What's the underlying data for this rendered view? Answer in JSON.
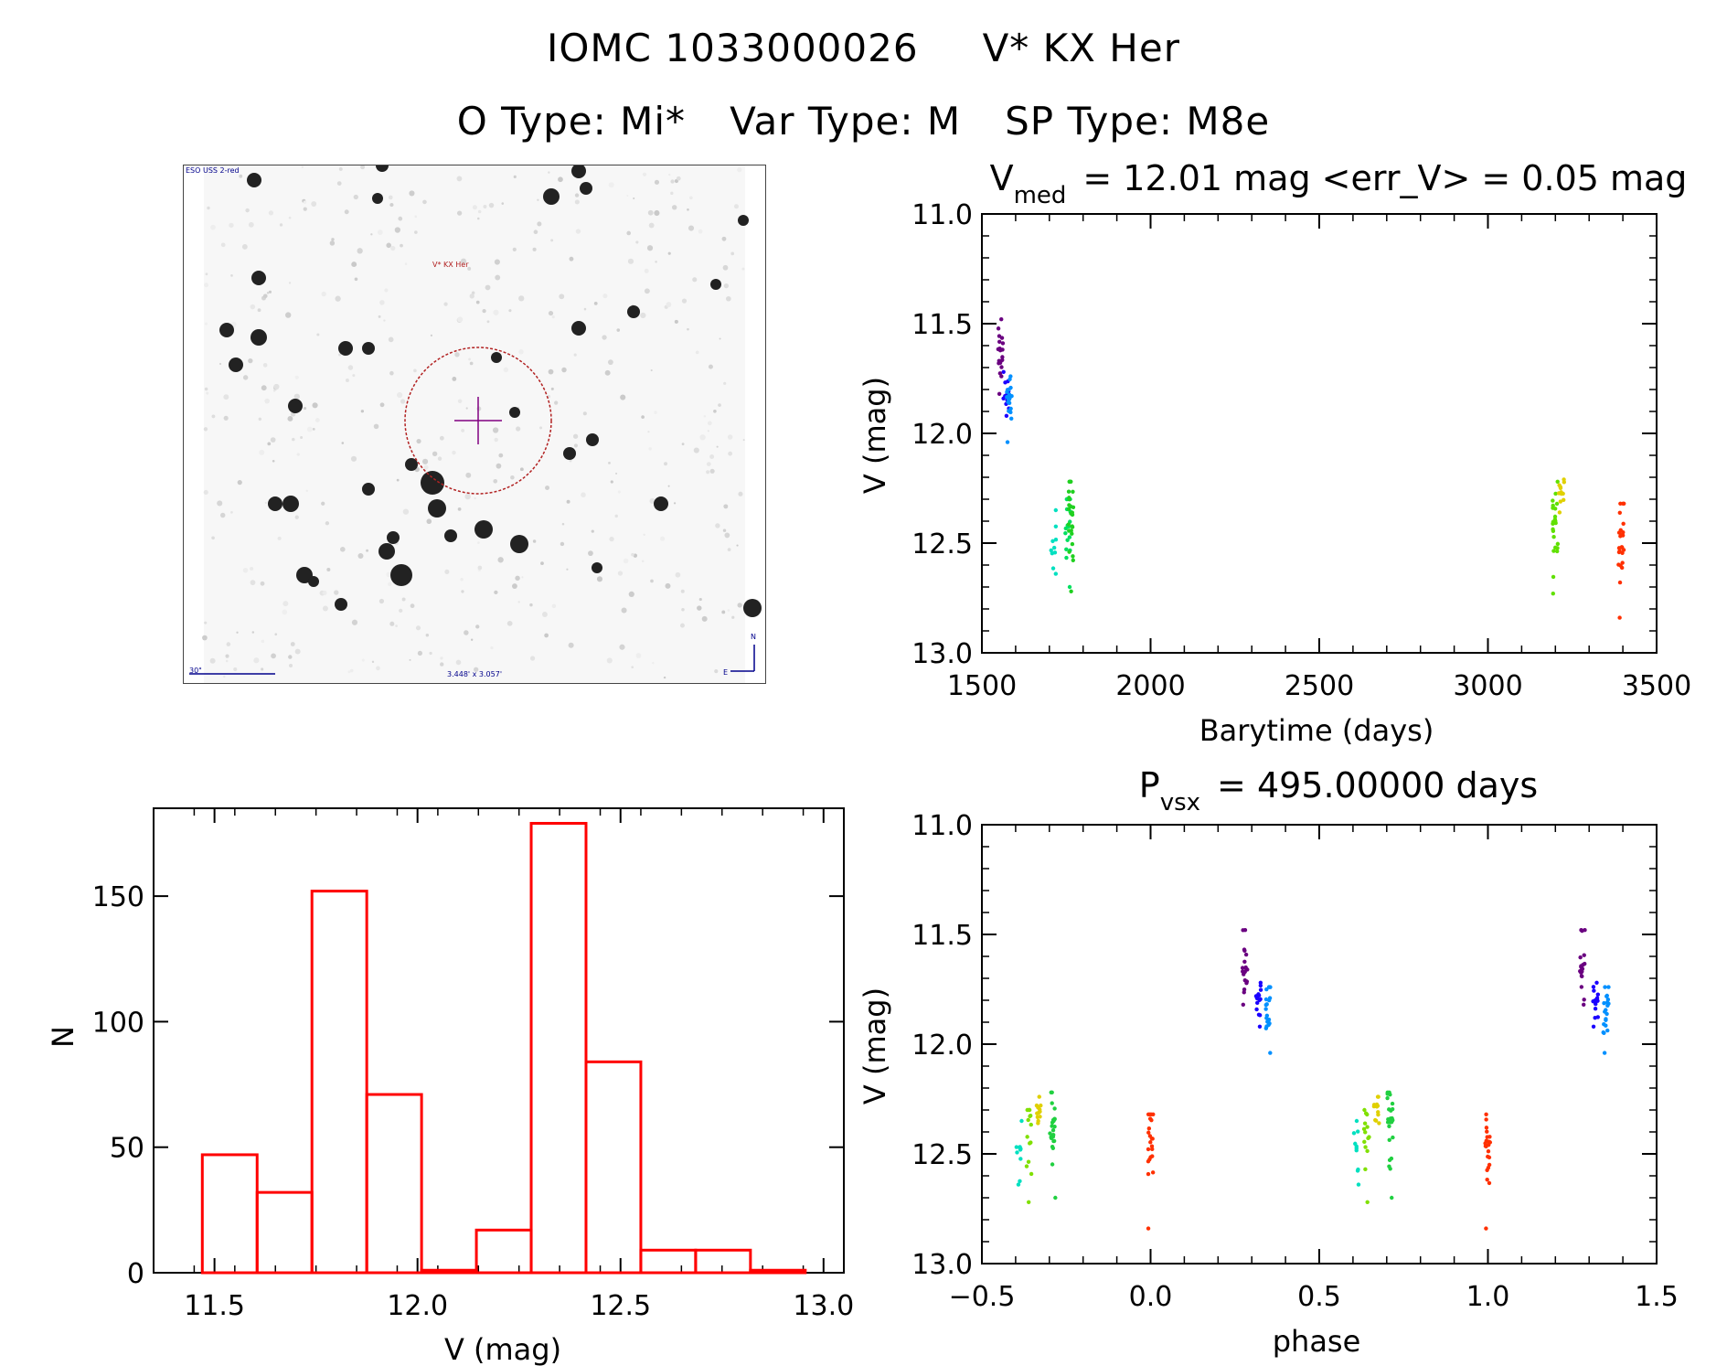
{
  "header": {
    "line1_id": "IOMC 1033000026",
    "line1_name": "V* KX Her",
    "otype": "O Type: Mi*",
    "vartype": "Var Type: M",
    "sptype": "SP Type: M8e"
  },
  "finder_chart": {
    "survey_label": "ESO USS 2-red",
    "target_label": "V* KX Her",
    "scale_label": "30\"",
    "fov_label": "3.448' x 3.057'",
    "north_label": "N",
    "east_label": "E"
  },
  "colors": {
    "histogram": "#ff0000",
    "circle": "#b22222",
    "crosshair": "#800080"
  },
  "chart_data": [
    {
      "type": "scatter",
      "name": "light-curve",
      "title_prefix": "V",
      "title_sub": "med",
      "title_rest": "= 12.01 mag <err_V> = 0.05 mag",
      "xlabel": "Barytime (days)",
      "ylabel": "V (mag)",
      "xlim": [
        1500,
        3500
      ],
      "ylim": [
        13.0,
        11.0
      ],
      "xticks": [
        1500,
        2000,
        2500,
        3000,
        3500
      ],
      "yticks": [
        11.0,
        11.5,
        12.0,
        12.5,
        13.0
      ],
      "groups": [
        {
          "x": 1555,
          "y_min": 11.48,
          "y_max": 11.82,
          "y_center": 11.63,
          "n": 20,
          "color": "#6a0080"
        },
        {
          "x": 1572,
          "y_min": 11.72,
          "y_max": 11.92,
          "y_center": 11.82,
          "n": 16,
          "color": "#1a00ff"
        },
        {
          "x": 1582,
          "y_min": 11.74,
          "y_max": 12.04,
          "y_center": 11.85,
          "n": 20,
          "color": "#0090ff"
        },
        {
          "x": 1712,
          "y_min": 12.35,
          "y_max": 12.64,
          "y_center": 12.5,
          "n": 10,
          "color": "#00e0c0"
        },
        {
          "x": 1755,
          "y_min": 12.3,
          "y_max": 12.7,
          "y_center": 12.42,
          "n": 16,
          "color": "#00e060"
        },
        {
          "x": 1765,
          "y_min": 12.22,
          "y_max": 12.72,
          "y_center": 12.38,
          "n": 26,
          "color": "#20d020"
        },
        {
          "x": 3200,
          "y_min": 12.22,
          "y_max": 12.73,
          "y_center": 12.38,
          "n": 24,
          "color": "#60e000"
        },
        {
          "x": 3218,
          "y_min": 12.21,
          "y_max": 12.36,
          "y_center": 12.28,
          "n": 12,
          "color": "#e0d000"
        },
        {
          "x": 3395,
          "y_min": 12.32,
          "y_max": 12.84,
          "y_center": 12.44,
          "n": 24,
          "color": "#ff3000"
        }
      ]
    },
    {
      "type": "bar",
      "name": "histogram",
      "xlabel": "V (mag)",
      "ylabel": "N",
      "xlim": [
        11.35,
        13.05
      ],
      "ylim": [
        0,
        185
      ],
      "xticks": [
        11.5,
        12.0,
        12.5,
        13.0
      ],
      "yticks": [
        0,
        50,
        100,
        150
      ],
      "bin_edges": [
        11.47,
        11.605,
        11.74,
        11.875,
        12.01,
        12.145,
        12.28,
        12.415,
        12.55,
        12.685,
        12.82,
        12.955
      ],
      "counts": [
        47,
        32,
        152,
        71,
        1,
        17,
        179,
        84,
        9,
        9,
        1
      ]
    },
    {
      "type": "scatter",
      "name": "phased-curve",
      "title_prefix": "P",
      "title_sub": "vsx",
      "title_rest": "= 495.00000 days",
      "xlabel": "phase",
      "ylabel": "V (mag)",
      "xlim": [
        -0.5,
        1.5
      ],
      "ylim": [
        13.0,
        11.0
      ],
      "xticks": [
        -0.5,
        0.0,
        0.5,
        1.0,
        1.5
      ],
      "xticklabels": [
        "−0.5",
        "0.0",
        "0.5",
        "1.0",
        "1.5"
      ],
      "yticks": [
        11.0,
        11.5,
        12.0,
        12.5,
        13.0
      ],
      "groups": [
        {
          "x": 0.28,
          "y_min": 11.48,
          "y_max": 11.82,
          "y_center": 11.63,
          "n": 20,
          "color": "#6a0080"
        },
        {
          "x": 0.32,
          "y_min": 11.72,
          "y_max": 11.92,
          "y_center": 11.82,
          "n": 16,
          "color": "#1a00ff"
        },
        {
          "x": 0.35,
          "y_min": 11.74,
          "y_max": 12.04,
          "y_center": 11.85,
          "n": 20,
          "color": "#0090ff"
        },
        {
          "x": -0.39,
          "y_min": 12.35,
          "y_max": 12.64,
          "y_center": 12.5,
          "n": 10,
          "color": "#00e0c0"
        },
        {
          "x": -0.36,
          "y_min": 12.3,
          "y_max": 12.72,
          "y_center": 12.42,
          "n": 14,
          "color": "#80e000"
        },
        {
          "x": -0.33,
          "y_min": 12.24,
          "y_max": 12.36,
          "y_center": 12.3,
          "n": 12,
          "color": "#e0d000"
        },
        {
          "x": -0.29,
          "y_min": 12.22,
          "y_max": 12.7,
          "y_center": 12.38,
          "n": 24,
          "color": "#20d040"
        },
        {
          "x": 0.0,
          "y_min": 12.32,
          "y_max": 12.84,
          "y_center": 12.44,
          "n": 22,
          "color": "#ff3000"
        },
        {
          "x": 0.61,
          "y_min": 12.35,
          "y_max": 12.64,
          "y_center": 12.5,
          "n": 10,
          "color": "#00e0c0"
        },
        {
          "x": 0.64,
          "y_min": 12.3,
          "y_max": 12.72,
          "y_center": 12.42,
          "n": 14,
          "color": "#80e000"
        },
        {
          "x": 0.67,
          "y_min": 12.24,
          "y_max": 12.36,
          "y_center": 12.3,
          "n": 12,
          "color": "#e0d000"
        },
        {
          "x": 0.71,
          "y_min": 12.22,
          "y_max": 12.7,
          "y_center": 12.38,
          "n": 24,
          "color": "#20d040"
        },
        {
          "x": 1.0,
          "y_min": 12.32,
          "y_max": 12.84,
          "y_center": 12.44,
          "n": 22,
          "color": "#ff3000"
        },
        {
          "x": 1.28,
          "y_min": 11.48,
          "y_max": 11.82,
          "y_center": 11.63,
          "n": 20,
          "color": "#6a0080"
        },
        {
          "x": 1.32,
          "y_min": 11.72,
          "y_max": 11.92,
          "y_center": 11.82,
          "n": 16,
          "color": "#1a00ff"
        },
        {
          "x": 1.35,
          "y_min": 11.74,
          "y_max": 12.04,
          "y_center": 11.85,
          "n": 20,
          "color": "#0090ff"
        }
      ]
    }
  ]
}
